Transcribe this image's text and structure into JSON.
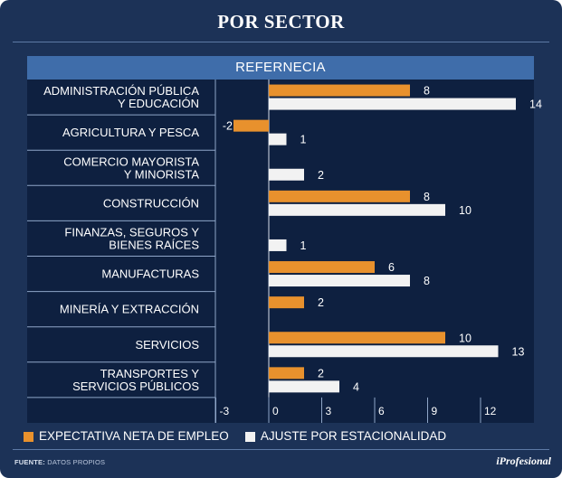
{
  "title": "POR SECTOR",
  "source_label": "FUENTE:",
  "source_text": "DATOS PROPIOS",
  "brand": "iProfesional",
  "chart_data": {
    "type": "bar",
    "orientation": "horizontal",
    "legend_title": "REFERNECIA",
    "categories": [
      [
        "ADMINISTRACIÓN PÚBLICA",
        "Y EDUCACIÓN"
      ],
      [
        "AGRICULTURA Y PESCA"
      ],
      [
        "COMERCIO MAYORISTA",
        "Y MINORISTA"
      ],
      [
        "CONSTRUCCIÓN"
      ],
      [
        "FINANZAS, SEGUROS Y",
        "BIENES RAÍCES"
      ],
      [
        "MANUFACTURAS"
      ],
      [
        "MINERÍA Y EXTRACCIÓN"
      ],
      [
        "SERVICIOS"
      ],
      [
        "TRANSPORTES Y",
        "SERVICIOS PÚBLICOS"
      ]
    ],
    "series": [
      {
        "name": "EXPECTATIVA NETA DE EMPLEO",
        "color": "#e8912d",
        "values": [
          8,
          -2,
          null,
          8,
          null,
          6,
          2,
          10,
          2
        ]
      },
      {
        "name": "AJUSTE POR ESTACIONALIDAD",
        "color": "#f2f2f2",
        "values": [
          14,
          1,
          2,
          10,
          1,
          8,
          null,
          13,
          4
        ]
      }
    ],
    "x_ticks": [
      -3,
      0,
      3,
      6,
      9,
      12
    ],
    "xlim": [
      -3,
      15
    ],
    "legend_position": "bottom"
  }
}
